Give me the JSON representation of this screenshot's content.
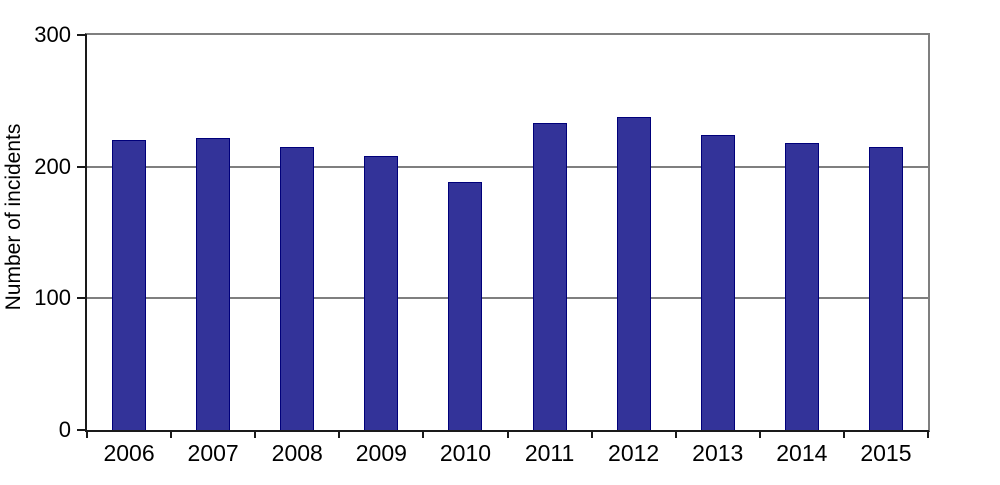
{
  "chart_data": {
    "type": "bar",
    "title": "",
    "xlabel": "",
    "ylabel": "Number of incidents",
    "categories": [
      "2006",
      "2007",
      "2008",
      "2009",
      "2010",
      "2011",
      "2012",
      "2013",
      "2014",
      "2015"
    ],
    "values": [
      220,
      222,
      215,
      208,
      188,
      233,
      238,
      224,
      218,
      215
    ],
    "ylim": [
      0,
      300
    ],
    "yticks": [
      0,
      100,
      200,
      300
    ],
    "grid": "horizontal",
    "legend_position": "none",
    "colors": {
      "bar_fill": "#333399",
      "bar_border": "#00007a",
      "gridline": "#7f7f7f",
      "axis": "#1a1a1a",
      "frame": "#7f7f7f",
      "text": "#000000",
      "background": "#ffffff"
    }
  }
}
